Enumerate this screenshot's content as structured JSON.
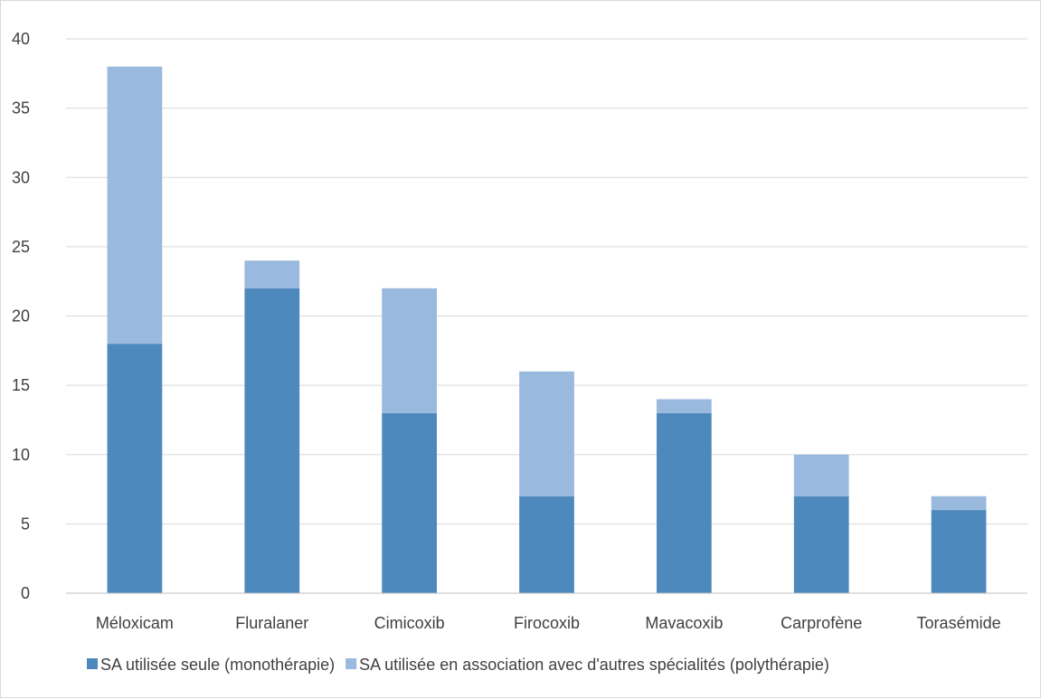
{
  "chart_data": {
    "type": "bar",
    "stacked": true,
    "categories": [
      "Méloxicam",
      "Fluralaner",
      "Cimicoxib",
      "Firocoxib",
      "Mavacoxib",
      "Carprofène",
      "Torasémide"
    ],
    "series": [
      {
        "name": "SA utilisée seule (monothérapie)",
        "values": [
          18,
          22,
          13,
          7,
          13,
          7,
          6
        ],
        "color": "#4e89bd"
      },
      {
        "name": "SA utilisée en association avec d'autres spécialités (polythérapie)",
        "values": [
          20,
          2,
          9,
          9,
          1,
          3,
          1
        ],
        "color": "#9ab9de"
      }
    ],
    "yticks": [
      "0",
      "5",
      "10",
      "15",
      "20",
      "25",
      "30",
      "35",
      "40"
    ],
    "ylim": [
      0,
      40
    ],
    "grid": true,
    "legend_position": "bottom",
    "gridline_color": "#d9d9d9",
    "axis_color": "#bfbfbf",
    "text_color": "#404040"
  }
}
